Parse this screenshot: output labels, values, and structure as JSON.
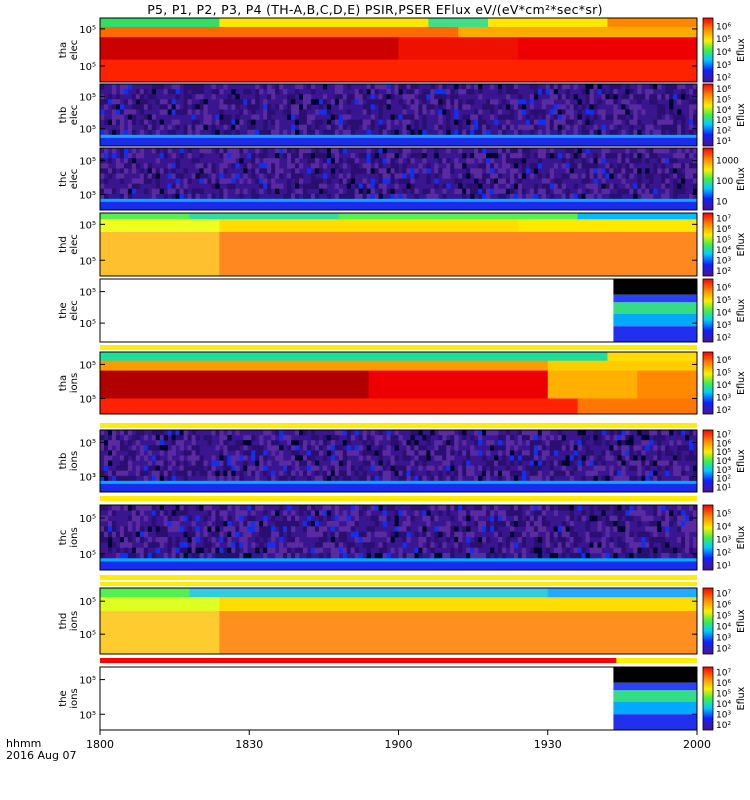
{
  "title": "P5, P1, P2, P3, P4 (TH-A,B,C,D,E) PSIR,PSER EFlux eV/(eV*cm²*sec*sr)",
  "colors": {
    "red": "#ee0000",
    "darkred": "#a80000",
    "orange": "#ff7a00",
    "yellow": "#ffe800",
    "green": "#22dd55",
    "cyan": "#00ccff",
    "blue": "#1030ff",
    "navy": "#3a1590",
    "purple": "#5a2a9a"
  },
  "chart_data": {
    "type": "heatmap",
    "xlabel_line1": "hhmm",
    "xlabel_line2": "2016 Aug 07",
    "x_ticks": [
      "1800",
      "1830",
      "1900",
      "1930",
      "2000"
    ],
    "x_range": [
      "18:00",
      "20:00"
    ],
    "cbar_title": "Eflux",
    "panels": [
      {
        "name": "tha elec",
        "label1": "tha",
        "label2": "elec",
        "y_ticks": [
          {
            "t": "10⁵",
            "f": 0.17
          },
          {
            "t": "10⁵",
            "f": 0.75
          }
        ],
        "cbar": [
          "10⁶",
          "10⁵",
          "10⁴",
          "10³",
          "10²"
        ],
        "style": "tha_e"
      },
      {
        "name": "thb elec",
        "label1": "thb",
        "label2": "elec",
        "y_ticks": [
          {
            "t": "10⁵",
            "f": 0.2
          },
          {
            "t": "10⁵",
            "f": 0.72
          }
        ],
        "cbar": [
          "10⁶",
          "10⁵",
          "10⁴",
          "10³",
          "10²",
          "10¹"
        ],
        "style": "noise"
      },
      {
        "name": "thc elec",
        "label1": "thc",
        "label2": "elec",
        "y_ticks": [
          {
            "t": "10⁵",
            "f": 0.2
          },
          {
            "t": "10⁵",
            "f": 0.75
          }
        ],
        "cbar": [
          "1000",
          "100",
          "10"
        ],
        "style": "noise"
      },
      {
        "name": "thd elec",
        "label1": "thd",
        "label2": "elec",
        "y_ticks": [
          {
            "t": "10⁵",
            "f": 0.18
          },
          {
            "t": "10⁵",
            "f": 0.75
          }
        ],
        "cbar": [
          "10⁷",
          "10⁶",
          "10⁵",
          "10⁴",
          "10³",
          "10²"
        ],
        "style": "thd_e"
      },
      {
        "name": "the elec",
        "label1": "the",
        "label2": "elec",
        "y_ticks": [
          {
            "t": "10⁵",
            "f": 0.2
          },
          {
            "t": "10⁵",
            "f": 0.7
          }
        ],
        "cbar": [
          "10⁶",
          "10⁵",
          "10⁴",
          "10³",
          "10²"
        ],
        "style": "the"
      },
      {
        "name": "tha ions",
        "label1": "tha",
        "label2": "ions",
        "y_ticks": [
          {
            "t": "10⁵",
            "f": 0.2
          },
          {
            "t": "10⁵",
            "f": 0.75
          }
        ],
        "cbar": [
          "10⁶",
          "10⁵",
          "10⁴",
          "10³",
          "10²"
        ],
        "style": "tha_i"
      },
      {
        "name": "thb ions",
        "label1": "thb",
        "label2": "ions",
        "y_ticks": [
          {
            "t": "10⁵",
            "f": 0.2
          },
          {
            "t": "10³",
            "f": 0.75
          }
        ],
        "cbar": [
          "10⁷",
          "10⁶",
          "10⁵",
          "10⁴",
          "10³",
          "10²",
          "10¹"
        ],
        "style": "noise"
      },
      {
        "name": "thc ions",
        "label1": "thc",
        "label2": "ions",
        "y_ticks": [
          {
            "t": "10⁵",
            "f": 0.2
          },
          {
            "t": "10⁵",
            "f": 0.75
          }
        ],
        "cbar": [
          "10⁵",
          "10⁴",
          "10³",
          "10²",
          "10¹"
        ],
        "style": "noise"
      },
      {
        "name": "thd ions",
        "label1": "thd",
        "label2": "ions",
        "y_ticks": [
          {
            "t": "10⁵",
            "f": 0.2
          },
          {
            "t": "10⁵",
            "f": 0.7
          }
        ],
        "cbar": [
          "10⁷",
          "10⁶",
          "10⁵",
          "10⁴",
          "10³",
          "10²"
        ],
        "style": "thd_i"
      },
      {
        "name": "the ions",
        "label1": "the",
        "label2": "ions",
        "y_ticks": [
          {
            "t": "10⁵",
            "f": 0.2
          },
          {
            "t": "10⁵",
            "f": 0.75
          }
        ],
        "cbar": [
          "10⁷",
          "10⁶",
          "10⁵",
          "10⁴",
          "10³",
          "10²"
        ],
        "style": "the"
      }
    ],
    "data_end_for_the_probe": "19:43"
  }
}
